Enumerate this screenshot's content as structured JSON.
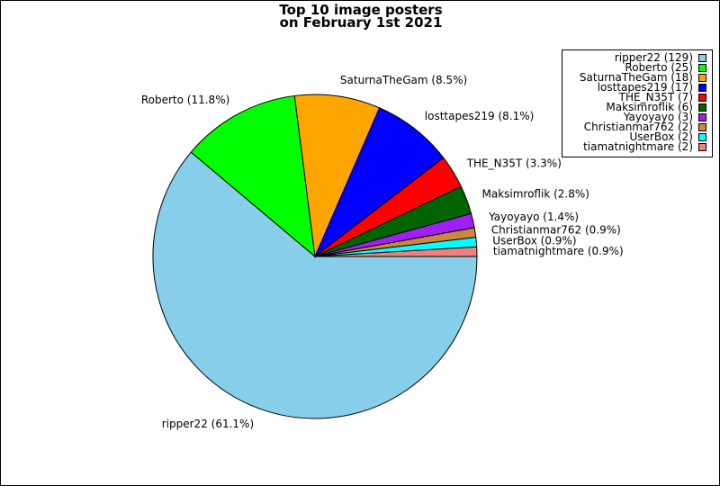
{
  "chart_data": {
    "type": "pie",
    "title_lines": [
      "Top 10 image posters",
      "on February 1st 2021"
    ],
    "slices": [
      {
        "name": "ripper22",
        "count": 129,
        "percent_label": "61.1%",
        "color": "#87ceeb"
      },
      {
        "name": "Roberto",
        "count": 25,
        "percent_label": "11.8%",
        "color": "#00ff00"
      },
      {
        "name": "SaturnaTheGam",
        "count": 18,
        "percent_label": "8.5%",
        "color": "#ffa500"
      },
      {
        "name": "losttapes219",
        "count": 17,
        "percent_label": "8.1%",
        "color": "#0000ff"
      },
      {
        "name": "THE_N35T",
        "count": 7,
        "percent_label": "3.3%",
        "color": "#ff0000"
      },
      {
        "name": "Maksimroflik",
        "count": 6,
        "percent_label": "2.8%",
        "color": "#006400"
      },
      {
        "name": "Yayoyayo",
        "count": 3,
        "percent_label": "1.4%",
        "color": "#a020f0"
      },
      {
        "name": "Christianmar762",
        "count": 2,
        "percent_label": "0.9%",
        "color": "#cd853f"
      },
      {
        "name": "UserBox",
        "count": 2,
        "percent_label": "0.9%",
        "color": "#00ffff"
      },
      {
        "name": "tiamatnightmare",
        "count": 2,
        "percent_label": "0.9%",
        "color": "#f08080"
      }
    ],
    "legend_position": "top-right",
    "start_angle": "3 o'clock",
    "direction": "clockwise"
  }
}
